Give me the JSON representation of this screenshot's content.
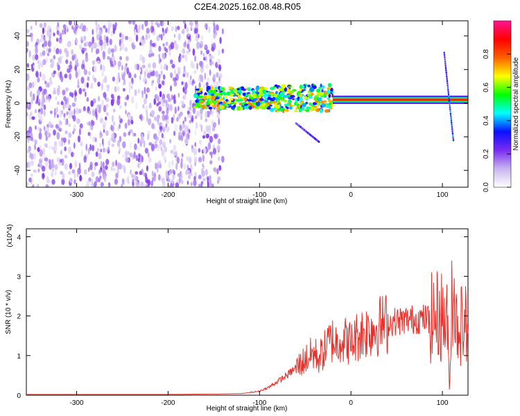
{
  "title": "C2E4.2025.162.08.48.R05",
  "chart_data": [
    {
      "type": "heatmap",
      "xlabel": "Height of straight line (km)",
      "ylabel": "Frequency (Hz)",
      "xlim": [
        -355,
        128
      ],
      "ylim": [
        -50,
        49
      ],
      "xticks": [
        -300,
        -200,
        -100,
        0,
        100
      ],
      "yticks": [
        40,
        20,
        0,
        -20,
        -40
      ],
      "colorbar": {
        "label": "Normalized spectral amplitude",
        "range": [
          0,
          1
        ],
        "ticks": [
          0.0,
          0.2,
          0.4,
          0.6,
          0.8
        ],
        "colors": [
          "#ffffff",
          "#c8b4f0",
          "#7a2cf0",
          "#0a10ff",
          "#00ffff",
          "#00ff00",
          "#ffff00",
          "#ff6000",
          "#ff0000",
          "#ff1493"
        ]
      },
      "features": [
        {
          "name": "noise",
          "x_range": [
            -355,
            -140
          ],
          "f_range": [
            -50,
            49
          ],
          "level": 0.2
        },
        {
          "name": "band",
          "x_range": [
            -170,
            -20
          ],
          "f_center": 3,
          "f_width": 14,
          "level": 0.55
        },
        {
          "name": "line",
          "x_range": [
            -20,
            128
          ],
          "f_center": 2,
          "level": 0.85
        },
        {
          "name": "streak",
          "x_from": -60,
          "x_to": -35,
          "f_from": -12,
          "f_to": -23,
          "level": 0.25
        },
        {
          "name": "spike",
          "x_from": 102,
          "x_to": 112,
          "f_from": 30,
          "f_to": -22,
          "level": 0.3
        }
      ]
    },
    {
      "type": "line",
      "xlabel": "Height of straight line (km)",
      "ylabel": "SNR (10 * v/v)",
      "multiplier": "(x10^4)",
      "xlim": [
        -355,
        128
      ],
      "ylim": [
        0,
        4.2
      ],
      "xticks": [
        -300,
        -200,
        -100,
        0,
        100
      ],
      "yticks": [
        0,
        1,
        2,
        3,
        4
      ],
      "color": "#e8302a",
      "x": [
        -355,
        -300,
        -200,
        -150,
        -120,
        -100,
        -90,
        -80,
        -70,
        -60,
        -50,
        -45,
        -40,
        -35,
        -30,
        -25,
        -20,
        -15,
        -12,
        -10,
        -5,
        0,
        5,
        10,
        20,
        30,
        40,
        50,
        60,
        70,
        80,
        90,
        95,
        100,
        105,
        108,
        110,
        112,
        115,
        120,
        128
      ],
      "y": [
        0.02,
        0.02,
        0.02,
        0.03,
        0.04,
        0.1,
        0.2,
        0.35,
        0.5,
        0.7,
        0.9,
        1.0,
        1.05,
        0.95,
        1.1,
        1.3,
        1.4,
        1.3,
        1.5,
        1.35,
        1.4,
        1.3,
        1.45,
        1.55,
        1.65,
        1.75,
        1.82,
        1.87,
        1.9,
        1.92,
        1.93,
        1.95,
        2.0,
        2.0,
        1.9,
        0.1,
        2.5,
        3.0,
        1.8,
        1.8,
        1.8
      ]
    }
  ]
}
